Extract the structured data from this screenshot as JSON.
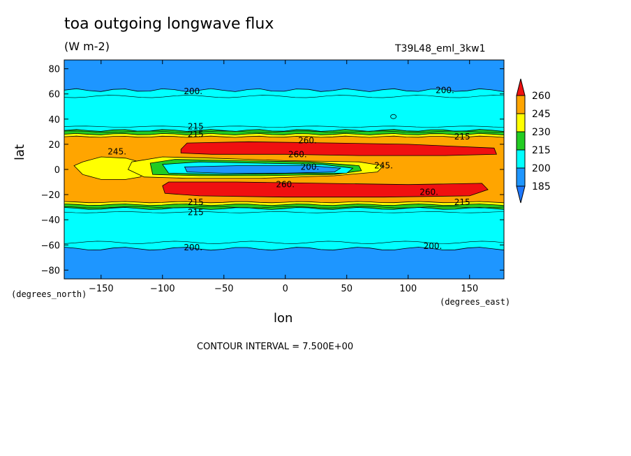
{
  "header": {
    "title": "toa outgoing longwave flux",
    "units": "(W m-2)",
    "run_id": "T39L48_eml_3kw1"
  },
  "footer": {
    "contour_interval": "CONTOUR INTERVAL = 7.500E+00"
  },
  "axes": {
    "xlabel": "lon",
    "ylabel": "lat",
    "x_units": "(degrees_east)",
    "y_units": "(degrees_north)"
  },
  "colors": {
    "below_185": "#1e78ff",
    "c185_200": "#1e96ff",
    "c200_215": "#00ffff",
    "c215_230": "#22cc22",
    "c230_245": "#ffff00",
    "c245_260": "#ffa500",
    "above_260": "#f01010"
  },
  "chart_data": {
    "type": "contour",
    "title": "toa outgoing longwave flux",
    "xlabel": "lon",
    "ylabel": "lat",
    "xlim": [
      -180,
      178
    ],
    "ylim": [
      -87,
      87
    ],
    "x_ticks": [
      -150,
      -100,
      -50,
      0,
      50,
      100,
      150
    ],
    "y_ticks": [
      -80,
      -60,
      -40,
      -20,
      0,
      20,
      40,
      60,
      80
    ],
    "colorbar_levels": [
      185,
      200,
      215,
      230,
      245,
      260
    ],
    "contour_interval": 7.5,
    "contour_labels": [
      {
        "text": "200.",
        "lon": -75,
        "lat": 62
      },
      {
        "text": "200.",
        "lon": 130,
        "lat": 63
      },
      {
        "text": "200.",
        "lon": -75,
        "lat": -62
      },
      {
        "text": "200.",
        "lon": 120,
        "lat": -61
      },
      {
        "text": "215",
        "lon": -73,
        "lat": 34
      },
      {
        "text": "215",
        "lon": -73,
        "lat": 28
      },
      {
        "text": "215",
        "lon": -73,
        "lat": -26
      },
      {
        "text": "215",
        "lon": -73,
        "lat": -34
      },
      {
        "text": "215",
        "lon": 144,
        "lat": 26
      },
      {
        "text": "215",
        "lon": 144,
        "lat": -26
      },
      {
        "text": "245.",
        "lon": -137,
        "lat": 14
      },
      {
        "text": "245.",
        "lon": 80,
        "lat": 3
      },
      {
        "text": "260.",
        "lon": 18,
        "lat": 23
      },
      {
        "text": "260.",
        "lon": 10,
        "lat": 12
      },
      {
        "text": "260.",
        "lon": 117,
        "lat": -18
      },
      {
        "text": "260.",
        "lon": 0,
        "lat": -12
      },
      {
        "text": "200.",
        "lon": 20,
        "lat": 2
      }
    ],
    "regions": [
      {
        "level": "above_260",
        "desc": "north ITCZ subtropical band",
        "lon_range": [
          -85,
          170
        ],
        "lat_range": [
          11,
          22
        ]
      },
      {
        "level": "above_260",
        "desc": "south subtropical band",
        "lon_range": [
          -100,
          165
        ],
        "lat_range": [
          -22,
          -10
        ]
      },
      {
        "level": "c200_215",
        "desc": "equatorial convective minimum",
        "lon_range": [
          -100,
          60
        ],
        "lat_range": [
          -6,
          6
        ]
      },
      {
        "level": "c185_200",
        "desc": "deep convection core",
        "lon_range": [
          -80,
          45
        ],
        "lat_range": [
          -4,
          3
        ]
      }
    ]
  }
}
